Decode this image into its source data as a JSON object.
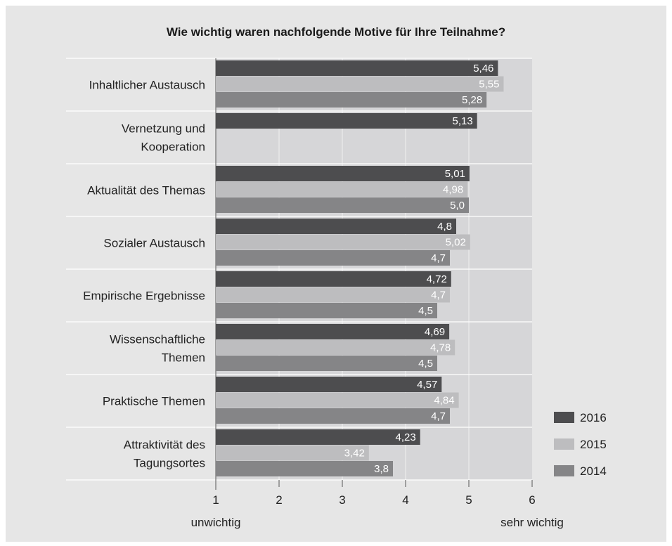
{
  "chart_data": {
    "type": "bar",
    "orientation": "horizontal",
    "title": "Wie wichtig waren nachfolgende Motive für Ihre Teilnahme?",
    "categories": [
      [
        "Inhaltlicher Austausch"
      ],
      [
        "Vernetzung und",
        "Kooperation"
      ],
      [
        "Aktualität des Themas"
      ],
      [
        "Sozialer Austausch"
      ],
      [
        "Empirische Ergebnisse"
      ],
      [
        "Wissenschaftliche",
        "Themen"
      ],
      [
        "Praktische Themen"
      ],
      [
        "Attraktivität des",
        "Tagungsortes"
      ]
    ],
    "series": [
      {
        "name": "2016",
        "color": "#4d4d4f",
        "values": [
          5.46,
          5.13,
          5.01,
          4.8,
          4.72,
          4.69,
          4.57,
          4.23
        ],
        "labels": [
          "5,46",
          "5,13",
          "5,01",
          "4,8",
          "4,72",
          "4,69",
          "4,57",
          "4,23"
        ]
      },
      {
        "name": "2015",
        "color": "#bdbdbf",
        "values": [
          5.55,
          null,
          4.98,
          5.02,
          4.7,
          4.78,
          4.84,
          3.42
        ],
        "labels": [
          "5,55",
          null,
          "4,98",
          "5,02",
          "4,7",
          "4,78",
          "4,84",
          "3,42"
        ]
      },
      {
        "name": "2014",
        "color": "#858587",
        "values": [
          5.28,
          null,
          5.0,
          4.7,
          4.5,
          4.5,
          4.7,
          3.8
        ],
        "labels": [
          "5,28",
          null,
          "5,0",
          "4,7",
          "4,5",
          "4,5",
          "4,7",
          "3,8"
        ]
      }
    ],
    "xlim": [
      1,
      6
    ],
    "xticks": [
      "1",
      "2",
      "3",
      "4",
      "5",
      "6"
    ],
    "scale_low_label": "unwichtig",
    "scale_high_label": "sehr wichtig",
    "grid": true,
    "legend_position": "bottom-right",
    "plot_background": "#d6d6d8"
  }
}
